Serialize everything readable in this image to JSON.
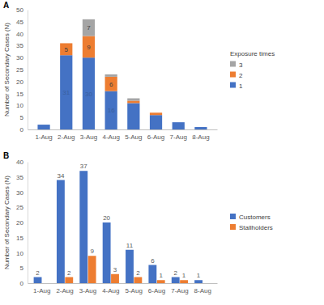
{
  "chart_data": [
    {
      "type": "bar",
      "title": "A",
      "stacked": true,
      "data_labels": true,
      "grid": false,
      "legend": "right",
      "y_label": "Number of Secondary Cases (N)",
      "legend_title": "Exposure times",
      "categories": [
        "1-Aug",
        "2-Aug",
        "3-Aug",
        "4-Aug",
        "5-Aug",
        "6-Aug",
        "7-Aug",
        "8-Aug"
      ],
      "ylim": [
        0,
        50
      ],
      "yticks": [
        0,
        5,
        10,
        15,
        20,
        25,
        30,
        35,
        40,
        45,
        50
      ],
      "series": [
        {
          "name": "1",
          "color": "#4472c4",
          "values": [
            2,
            31,
            30,
            16,
            11,
            6,
            3,
            1
          ],
          "value_labels": [
            null,
            "31",
            "30",
            "16",
            null,
            null,
            null,
            null
          ]
        },
        {
          "name": "2",
          "color": "#ed7d31",
          "values": [
            null,
            5,
            9,
            6,
            1,
            1,
            null,
            null
          ],
          "value_labels": [
            null,
            "5",
            "9",
            "6",
            null,
            null,
            null,
            null
          ]
        },
        {
          "name": "3",
          "color": "#a5a5a5",
          "values": [
            null,
            null,
            7,
            1,
            1,
            null,
            null,
            null
          ],
          "value_labels": [
            null,
            null,
            "7",
            null,
            null,
            null,
            null,
            null
          ]
        }
      ]
    },
    {
      "type": "bar",
      "title": "B",
      "stacked": false,
      "data_labels": true,
      "grid": false,
      "legend": "right",
      "y_label": "Number of Secondary Cases (N)",
      "categories": [
        "1-Aug",
        "2-Aug",
        "3-Aug",
        "4-Aug",
        "5-Aug",
        "6-Aug",
        "7-Aug",
        "8-Aug"
      ],
      "ylim": [
        0,
        40
      ],
      "yticks": [
        0,
        5,
        10,
        15,
        20,
        25,
        30,
        35,
        40
      ],
      "series": [
        {
          "name": "Customers",
          "color": "#4472c4",
          "values": [
            2,
            34,
            37,
            20,
            11,
            6,
            2,
            1
          ]
        },
        {
          "name": "Stallholders",
          "color": "#ed7d31",
          "values": [
            null,
            2,
            9,
            3,
            2,
            1,
            1,
            null
          ]
        }
      ]
    }
  ]
}
